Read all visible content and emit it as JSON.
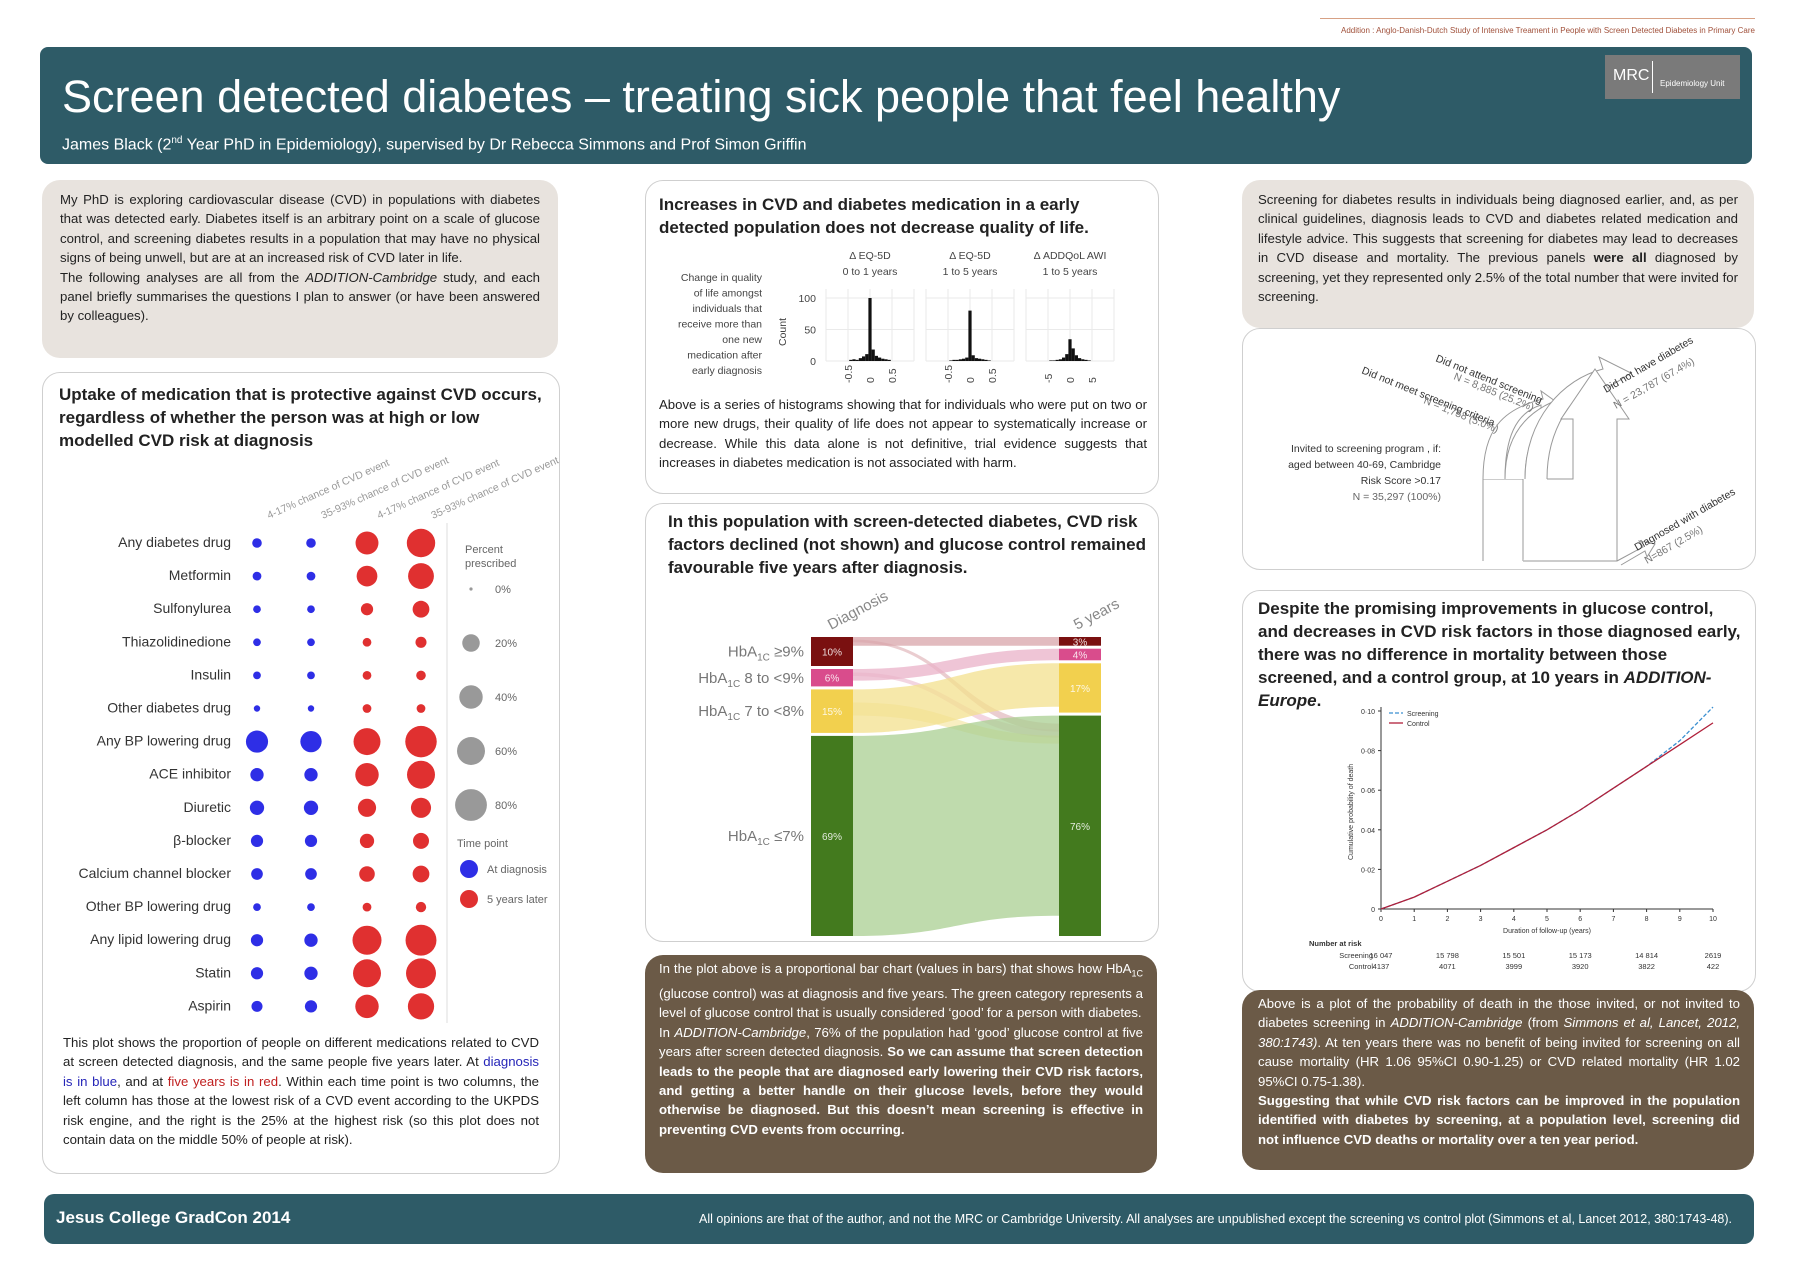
{
  "top_note": "Addition : Anglo-Danish-Dutch Study of Intensive Treament in People with Screen Detected Diabetes in Primary Care",
  "header": {
    "title": "Screen detected diabetes – treating sick people that feel healthy",
    "subtitle_pre": "James Black (2",
    "subtitle_sup": "nd",
    "subtitle_post": " Year PhD in Epidemiology), supervised by Dr Rebecca Simmons and Prof Simon Griffin",
    "logo_mrc": "MRC",
    "logo_unit": "Epidemiology Unit"
  },
  "intro": {
    "p1": "My PhD is exploring cardiovascular disease (CVD) in populations with diabetes that was detected early. Diabetes itself is an arbitrary point on a scale of glucose control, and screening diabetes results in a population that may have no physical signs of being unwell, but are at an increased risk of CVD later in life.",
    "p2_pre": "The following analyses are all from the ",
    "p2_em": "ADDITION-Cambridge",
    "p2_post": " study, and each panel briefly summarises the questions I plan to answer (or have been answered by colleagues)."
  },
  "uptake": {
    "heading": "Uptake of medication that is protective against CVD occurs, regardless of whether the person was at high or low modelled CVD risk at diagnosis",
    "columns": [
      "4-17% chance of CVD event",
      "35-93% chance of CVD event",
      "4-17% chance of CVD event",
      "35-93% chance of CVD event"
    ],
    "rows": [
      {
        "label": "Any diabetes drug",
        "v": [
          4,
          4,
          38,
          62
        ]
      },
      {
        "label": "Metformin",
        "v": [
          3,
          3,
          30,
          50
        ]
      },
      {
        "label": "Sulfonylurea",
        "v": [
          2,
          2,
          8,
          18
        ]
      },
      {
        "label": "Thiazolidinedione",
        "v": [
          2,
          2,
          3,
          6
        ]
      },
      {
        "label": "Insulin",
        "v": [
          2,
          2,
          3,
          4
        ]
      },
      {
        "label": "Other diabetes drug",
        "v": [
          1,
          1,
          3,
          3
        ]
      },
      {
        "label": "Any BP lowering drug",
        "v": [
          35,
          32,
          55,
          78
        ]
      },
      {
        "label": "ACE inhibitor",
        "v": [
          10,
          10,
          40,
          60
        ]
      },
      {
        "label": "Diuretic",
        "v": [
          12,
          12,
          22,
          28
        ]
      },
      {
        "label": "β-blocker",
        "v": [
          8,
          8,
          12,
          16
        ]
      },
      {
        "label": "Calcium channel blocker",
        "v": [
          7,
          7,
          15,
          18
        ]
      },
      {
        "label": "Other BP lowering drug",
        "v": [
          2,
          2,
          3,
          5
        ]
      },
      {
        "label": "Any lipid lowering drug",
        "v": [
          8,
          10,
          65,
          75
        ]
      },
      {
        "label": "Statin",
        "v": [
          8,
          10,
          60,
          70
        ]
      },
      {
        "label": "Aspirin",
        "v": [
          6,
          8,
          40,
          52
        ]
      }
    ],
    "legend_title": "Percent prescribed",
    "legend_sizes": [
      {
        "label": "0%",
        "v": 0
      },
      {
        "label": "20%",
        "v": 20
      },
      {
        "label": "40%",
        "v": 40
      },
      {
        "label": "60%",
        "v": 60
      },
      {
        "label": "80%",
        "v": 80
      }
    ],
    "time_title": "Time point",
    "time_items": [
      {
        "label": "At diagnosis",
        "color": "#2e2ee6"
      },
      {
        "label": "5 years later",
        "color": "#e03030"
      }
    ],
    "caption_1": "This plot shows the proportion of people on different medications related to CVD at screen detected diagnosis, and the same people five years later. At ",
    "caption_blue": "diagnosis is in blue",
    "caption_2": ", and at ",
    "caption_red": "five years is in red",
    "caption_3": ". Within each time point is two columns, the left column has those at the lowest risk of a CVD event according to the UKPDS risk engine, and the right is the 25% at the highest risk (so this plot does not contain data on the middle 50% of people at risk)."
  },
  "qol": {
    "heading": "Increases in CVD and diabetes medication in a early detected population does not decrease quality of life.",
    "ylabel_text": "Change in quality of life amongst individuals that receive more than one new medication after early diagnosis",
    "count_label": "Count",
    "y_ticks": [
      "100",
      "50",
      "0"
    ],
    "panels": [
      {
        "t1": "Δ EQ-5D",
        "t2": "0 to 1 years",
        "ticks": [
          "-0.5",
          "0",
          "0.5"
        ]
      },
      {
        "t1": "Δ EQ-5D",
        "t2": "1 to 5 years",
        "ticks": [
          "-0.5",
          "0",
          "0.5"
        ]
      },
      {
        "t1": "Δ ADDQoL AWI",
        "t2": "1 to 5 years",
        "ticks": [
          "-5",
          "0",
          "5"
        ]
      }
    ],
    "caption": "Above is a series of histograms showing that for individuals who were put on two or more new drugs, their quality of life does not appear to systematically increase or decrease. While this data alone is not definitive, trial evidence suggests that increases in diabetes medication is not associated with harm."
  },
  "glucose": {
    "heading": "In this population with screen-detected diabetes, CVD risk factors declined (not shown) and glucose control remained favourable five years after diagnosis.",
    "col_left": "Diagnosis",
    "col_right": "5 years",
    "cats": [
      {
        "label": "HbA",
        "sub": "1C",
        "rest": " ≥9%",
        "left": 10,
        "right": 3,
        "lab_l": "10%",
        "lab_r": "3%",
        "color": "#7a1010"
      },
      {
        "label": "HbA",
        "sub": "1C",
        "rest": "  8 to <9%",
        "left": 6,
        "right": 4,
        "lab_l": "6%",
        "lab_r": "4%",
        "color": "#d94c8c"
      },
      {
        "label": "HbA",
        "sub": "1C",
        "rest": "  7 to <8%",
        "left": 15,
        "right": 17,
        "lab_l": "15%",
        "lab_r": "17%",
        "color": "#f2d04e"
      },
      {
        "label": "HbA",
        "sub": "1C",
        "rest": "  ≤7%",
        "left": 69,
        "right": 76,
        "lab_l": "69%",
        "lab_r": "76%",
        "color": "#437a1e"
      }
    ]
  },
  "glucose_caption": {
    "c1_pre": "In the plot above is a proportional bar chart (values in bars) that shows how HbA",
    "c1_sub": "1C",
    "c1_post": " (glucose control) was at diagnosis and five years. The green category represents a level of glucose control that is usually considered ‘good’ for a person with diabetes.",
    "c2_em": "ADDITION-Cambridge",
    "c2_pre": "In ",
    "c2_mid": ", 76% of the population had ‘good’ glucose control at five years after screen detected diagnosis. ",
    "c2_bold": "So we can assume that screen detection leads to the people that are diagnosed early lowering their CVD risk factors, and getting a better handle on their glucose levels, before they would otherwise be diagnosed. But this doesn’t mean screening is effective in preventing CVD events from occurring."
  },
  "screening": {
    "text_pre": "Screening for diabetes results in individuals being diagnosed earlier, and, as per clinical guidelines, diagnosis leads to CVD and diabetes related medication and lifestyle advice. This suggests that screening for diabetes may lead to decreases in CVD disease and mortality. The previous panels ",
    "text_bold": "were all",
    "text_post": " diagnosed by screening, yet they represented only 2.5% of the total number that were invited for screening.",
    "invited_1": "Invited to screening program , if:",
    "invited_2": "aged between 40-69, Cambridge",
    "invited_3": "Risk Score >0.17",
    "invited_n": "N = 35,297 (100%)",
    "not_meet": "Did not meet screening criteria",
    "not_meet_n": "N = 1,758 (5.0%)",
    "not_attend": "Did not attend screening",
    "not_attend_n": "N = 8,885 (25.2%)",
    "no_diab": "Did not have diabetes",
    "no_diab_n": "N = 23,787 (67.4%)",
    "diag": "Diagnosed with diabetes",
    "diag_n": "N=867 (2.5%)"
  },
  "mortality": {
    "heading_pre": "Despite the promising improvements in glucose control, and decreases in CVD risk factors in those diagnosed early, there was no difference in mortality between those screened, and a control group, at 10 years in ",
    "heading_em": "ADDITION-Europe",
    "heading_post": ".",
    "legend": [
      {
        "label": "Screening",
        "color": "#3a8fd0"
      },
      {
        "label": "Control",
        "color": "#b0203a"
      }
    ],
    "ylabel": "Cumulative probability of death",
    "xlabel": "Duration of follow-up (years)",
    "y_ticks": [
      "0·10",
      "0·08",
      "0·06",
      "0·04",
      "0·02",
      "0"
    ],
    "x_ticks": [
      "0",
      "1",
      "2",
      "3",
      "4",
      "5",
      "6",
      "7",
      "8",
      "9",
      "10"
    ],
    "risk_title": "Number at risk",
    "risk_rows": [
      {
        "label": "Screening",
        "vals": [
          "16 047",
          "15 798",
          "15 501",
          "15 173",
          "14 814",
          "2619"
        ]
      },
      {
        "label": "Control",
        "vals": [
          "4137",
          "4071",
          "3999",
          "3920",
          "3822",
          "422"
        ]
      }
    ]
  },
  "chart_data": [
    {
      "type": "scatter",
      "categories": [
        "Any diabetes drug",
        "Metformin",
        "Sulfonylurea",
        "Thiazolidinedione",
        "Insulin",
        "Other diabetes drug",
        "Any BP lowering drug",
        "ACE inhibitor",
        "Diuretic",
        "β-blocker",
        "Calcium channel blocker",
        "Other BP lowering drug",
        "Any lipid lowering drug",
        "Statin",
        "Aspirin"
      ],
      "series": [
        {
          "name": "At diagnosis",
          "values": [
            4,
            3,
            2,
            2,
            2,
            1,
            35,
            10,
            12,
            8,
            7,
            2,
            8,
            8,
            6
          ]
        },
        {
          "name": "5 years later",
          "values": [
            62,
            50,
            18,
            6,
            4,
            3,
            78,
            60,
            28,
            16,
            18,
            5,
            75,
            70,
            52
          ]
        }
      ]
    },
    {
      "type": "bar",
      "categories": [
        "HbA1C ≥9%",
        "HbA1C 8 to <9%",
        "HbA1C 7 to <8%",
        "HbA1C ≤7%"
      ],
      "series": [
        {
          "name": "Diagnosis",
          "values": [
            10,
            6,
            15,
            69
          ]
        },
        {
          "name": "5 years",
          "values": [
            3,
            4,
            17,
            76
          ]
        }
      ],
      "ylim": [
        0,
        100
      ]
    },
    {
      "type": "line",
      "x": [
        0,
        1,
        2,
        3,
        4,
        5,
        6,
        7,
        8,
        9,
        10
      ],
      "series": [
        {
          "name": "Screening",
          "values": [
            0,
            0.006,
            0.014,
            0.022,
            0.031,
            0.04,
            0.05,
            0.061,
            0.072,
            0.085,
            0.102
          ]
        },
        {
          "name": "Control",
          "values": [
            0,
            0.006,
            0.014,
            0.022,
            0.031,
            0.04,
            0.05,
            0.061,
            0.072,
            0.083,
            0.094
          ]
        }
      ],
      "xlabel": "Duration of follow-up (years)",
      "ylabel": "Cumulative probability of death",
      "ylim": [
        0,
        0.1
      ],
      "xlim": [
        0,
        10
      ]
    }
  ],
  "footer": {
    "left": "Jesus  College GradCon 2014",
    "right": "All opinions are that of the author, and not the MRC or Cambridge University. All analyses are unpublished except the screening vs control plot (Simmons et al, Lancet 2012, 380:1743-48)."
  }
}
